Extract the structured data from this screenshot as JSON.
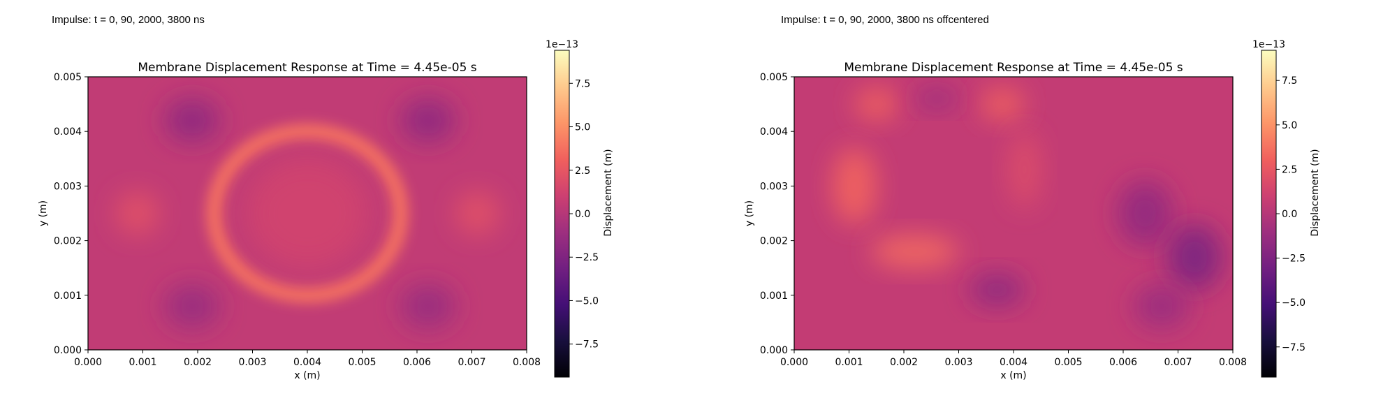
{
  "headers": [
    "Impulse: t = 0, 90, 2000, 3800 ns",
    "Impulse: t = 0, 90, 2000, 3800 ns offcentered"
  ],
  "colors": {
    "cmap": [
      "#000004",
      "#180f3d",
      "#440f76",
      "#721f81",
      "#9e2f7f",
      "#cd4071",
      "#f1605d",
      "#fd9668",
      "#feca8d",
      "#fcfdbf"
    ]
  },
  "chart_data": [
    {
      "type": "heatmap",
      "title": "Membrane Displacement Response at Time = 4.45e-05 s",
      "xlabel": "x (m)",
      "ylabel": "y (m)",
      "xlim": [
        0,
        0.008
      ],
      "ylim": [
        0,
        0.005
      ],
      "xticks": [
        "0.000",
        "0.001",
        "0.002",
        "0.003",
        "0.004",
        "0.005",
        "0.006",
        "0.007",
        "0.008"
      ],
      "yticks": [
        "0.000",
        "0.001",
        "0.002",
        "0.003",
        "0.004",
        "0.005"
      ],
      "grid": false,
      "colorbar": {
        "label": "Displacement (m)",
        "exponent": "1e−13",
        "range": [
          -9.4,
          9.4
        ],
        "ticks": [
          {
            "value": 7.5,
            "label": "7.5"
          },
          {
            "value": 5.0,
            "label": "5.0"
          },
          {
            "value": 2.5,
            "label": "2.5"
          },
          {
            "value": 0.0,
            "label": "0.0"
          },
          {
            "value": -2.5,
            "label": "−2.5"
          },
          {
            "value": -5.0,
            "label": "−5.0"
          },
          {
            "value": -7.5,
            "label": "−7.5"
          }
        ]
      },
      "background_value": 0.5,
      "features": [
        {
          "shape": "ring",
          "x": 0.004,
          "y": 0.0025,
          "rx": 0.0017,
          "ry": 0.0015,
          "width": 0.00028,
          "value": 3.8
        },
        {
          "shape": "blob",
          "x": 0.004,
          "y": 0.0025,
          "rx": 0.0011,
          "ry": 0.001,
          "value": 1.3
        },
        {
          "shape": "blob",
          "x": 0.0009,
          "y": 0.0025,
          "rx": 0.0004,
          "ry": 0.0004,
          "value": 2.2
        },
        {
          "shape": "blob",
          "x": 0.0071,
          "y": 0.0025,
          "rx": 0.0004,
          "ry": 0.0004,
          "value": 2.2
        },
        {
          "shape": "blob",
          "x": 0.0019,
          "y": 0.0042,
          "rx": 0.0005,
          "ry": 0.0004,
          "value": -1.8
        },
        {
          "shape": "blob",
          "x": 0.0062,
          "y": 0.0042,
          "rx": 0.0005,
          "ry": 0.0004,
          "value": -1.8
        },
        {
          "shape": "blob",
          "x": 0.0019,
          "y": 0.0008,
          "rx": 0.0005,
          "ry": 0.0004,
          "value": -1.4
        },
        {
          "shape": "blob",
          "x": 0.0062,
          "y": 0.0008,
          "rx": 0.0005,
          "ry": 0.0004,
          "value": -1.4
        }
      ]
    },
    {
      "type": "heatmap",
      "title": "Membrane Displacement Response at Time = 4.45e-05 s",
      "xlabel": "x (m)",
      "ylabel": "y (m)",
      "xlim": [
        0,
        0.008
      ],
      "ylim": [
        0,
        0.005
      ],
      "xticks": [
        "0.000",
        "0.001",
        "0.002",
        "0.003",
        "0.004",
        "0.005",
        "0.006",
        "0.007",
        "0.008"
      ],
      "yticks": [
        "0.000",
        "0.001",
        "0.002",
        "0.003",
        "0.004",
        "0.005"
      ],
      "grid": false,
      "colorbar": {
        "label": "Displacement (m)",
        "exponent": "1e−13",
        "range": [
          -9.2,
          9.2
        ],
        "ticks": [
          {
            "value": 7.5,
            "label": "7.5"
          },
          {
            "value": 5.0,
            "label": "5.0"
          },
          {
            "value": 2.5,
            "label": "2.5"
          },
          {
            "value": 0.0,
            "label": "0.0"
          },
          {
            "value": -2.5,
            "label": "−2.5"
          },
          {
            "value": -5.0,
            "label": "−5.0"
          },
          {
            "value": -7.5,
            "label": "−7.5"
          }
        ]
      },
      "background_value": 0.6,
      "features": [
        {
          "shape": "blob",
          "x": 0.0011,
          "y": 0.003,
          "rx": 0.0004,
          "ry": 0.0007,
          "value": 3.2
        },
        {
          "shape": "blob",
          "x": 0.0022,
          "y": 0.0018,
          "rx": 0.0008,
          "ry": 0.0003,
          "value": 3.4
        },
        {
          "shape": "blob",
          "x": 0.0015,
          "y": 0.0045,
          "rx": 0.0004,
          "ry": 0.0003,
          "value": 3.0
        },
        {
          "shape": "blob",
          "x": 0.0038,
          "y": 0.0045,
          "rx": 0.0004,
          "ry": 0.0003,
          "value": 3.0
        },
        {
          "shape": "blob",
          "x": 0.0042,
          "y": 0.0033,
          "rx": 0.0003,
          "ry": 0.0007,
          "value": 1.8
        },
        {
          "shape": "blob",
          "x": 0.0026,
          "y": 0.0046,
          "rx": 0.0004,
          "ry": 0.0002,
          "value": -1.2
        },
        {
          "shape": "blob",
          "x": 0.0037,
          "y": 0.0011,
          "rx": 0.0005,
          "ry": 0.0003,
          "value": -1.8
        },
        {
          "shape": "blob",
          "x": 0.0064,
          "y": 0.0025,
          "rx": 0.0005,
          "ry": 0.0006,
          "value": -1.6
        },
        {
          "shape": "blob",
          "x": 0.0073,
          "y": 0.0017,
          "rx": 0.0005,
          "ry": 0.0006,
          "value": -2.6
        },
        {
          "shape": "blob",
          "x": 0.0067,
          "y": 0.0008,
          "rx": 0.0005,
          "ry": 0.0004,
          "value": -1.2
        }
      ]
    }
  ]
}
